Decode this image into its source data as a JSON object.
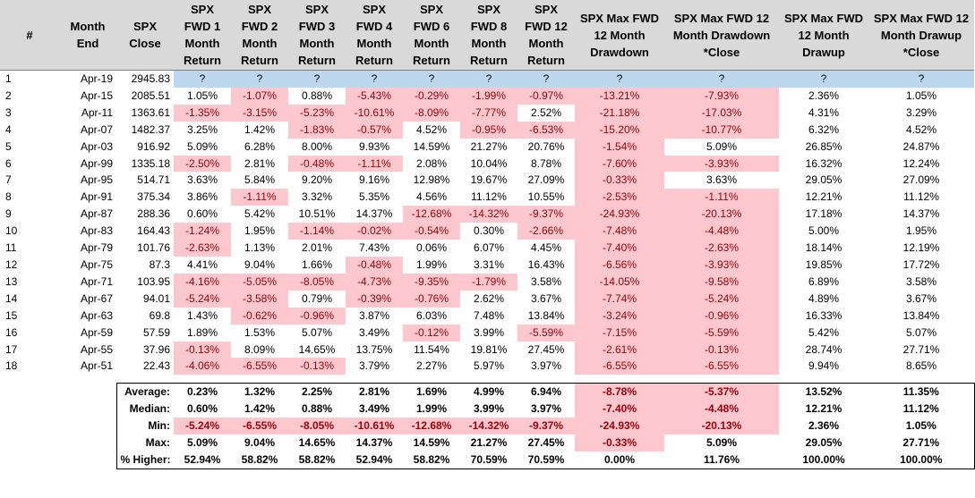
{
  "headers": [
    "#",
    "Month End",
    "SPX Close",
    "SPX FWD 1 Month Return",
    "SPX FWD 2 Month Return",
    "SPX FWD 3 Month Return",
    "SPX FWD 4 Month Return",
    "SPX FWD 6 Month Return",
    "SPX FWD 8 Month Return",
    "SPX FWD 12 Month Return",
    "SPX Max FWD 12 Month Drawdown",
    "SPX Max FWD 12 Month Drawdown *Close",
    "SPX Max FWD 12 Month Drawup",
    "SPX Max FWD 12 Month Drawup *Close"
  ],
  "rows": [
    [
      "1",
      "Apr-19",
      "2945.83",
      "?",
      "?",
      "?",
      "?",
      "?",
      "?",
      "?",
      "?",
      "?",
      "?",
      "?"
    ],
    [
      "2",
      "Apr-15",
      "2085.51",
      "1.05%",
      "-1.07%",
      "0.88%",
      "-5.43%",
      "-0.29%",
      "-1.99%",
      "-0.97%",
      "-13.21%",
      "-7.93%",
      "2.36%",
      "1.05%"
    ],
    [
      "3",
      "Apr-11",
      "1363.61",
      "-1.35%",
      "-3.15%",
      "-5.23%",
      "-10.61%",
      "-8.09%",
      "-7.77%",
      "2.52%",
      "-21.18%",
      "-17.03%",
      "4.31%",
      "3.29%"
    ],
    [
      "4",
      "Apr-07",
      "1482.37",
      "3.25%",
      "1.42%",
      "-1.83%",
      "-0.57%",
      "4.52%",
      "-0.95%",
      "-6.53%",
      "-15.20%",
      "-10.77%",
      "6.32%",
      "4.52%"
    ],
    [
      "5",
      "Apr-03",
      "916.92",
      "5.09%",
      "6.28%",
      "8.00%",
      "9.93%",
      "14.59%",
      "21.27%",
      "20.76%",
      "-1.54%",
      "5.09%",
      "26.85%",
      "24.87%"
    ],
    [
      "6",
      "Apr-99",
      "1335.18",
      "-2.50%",
      "2.81%",
      "-0.48%",
      "-1.11%",
      "2.08%",
      "10.04%",
      "8.78%",
      "-7.60%",
      "-3.93%",
      "16.32%",
      "12.24%"
    ],
    [
      "7",
      "Apr-95",
      "514.71",
      "3.63%",
      "5.84%",
      "9.20%",
      "9.16%",
      "12.98%",
      "19.67%",
      "27.09%",
      "-0.33%",
      "3.63%",
      "29.05%",
      "27.09%"
    ],
    [
      "8",
      "Apr-91",
      "375.34",
      "3.86%",
      "-1.11%",
      "3.32%",
      "5.35%",
      "4.56%",
      "11.12%",
      "10.55%",
      "-2.53%",
      "-1.11%",
      "12.21%",
      "11.12%"
    ],
    [
      "9",
      "Apr-87",
      "288.36",
      "0.60%",
      "5.42%",
      "10.51%",
      "14.37%",
      "-12.68%",
      "-14.32%",
      "-9.37%",
      "-24.93%",
      "-20.13%",
      "17.18%",
      "14.37%"
    ],
    [
      "10",
      "Apr-83",
      "164.43",
      "-1.24%",
      "1.95%",
      "-1.14%",
      "-0.02%",
      "-0.54%",
      "0.30%",
      "-2.66%",
      "-7.48%",
      "-4.48%",
      "5.00%",
      "1.95%"
    ],
    [
      "11",
      "Apr-79",
      "101.76",
      "-2.63%",
      "1.13%",
      "2.01%",
      "7.43%",
      "0.06%",
      "6.07%",
      "4.45%",
      "-7.40%",
      "-2.63%",
      "18.14%",
      "12.19%"
    ],
    [
      "12",
      "Apr-75",
      "87.3",
      "4.41%",
      "9.04%",
      "1.66%",
      "-0.48%",
      "1.99%",
      "3.31%",
      "16.43%",
      "-6.56%",
      "-3.93%",
      "19.85%",
      "17.72%"
    ],
    [
      "13",
      "Apr-71",
      "103.95",
      "-4.16%",
      "-5.05%",
      "-8.05%",
      "-4.73%",
      "-9.35%",
      "-1.79%",
      "3.58%",
      "-14.05%",
      "-9.58%",
      "6.89%",
      "3.58%"
    ],
    [
      "14",
      "Apr-67",
      "94.01",
      "-5.24%",
      "-3.58%",
      "0.79%",
      "-0.39%",
      "-0.76%",
      "2.62%",
      "3.67%",
      "-7.74%",
      "-5.24%",
      "4.89%",
      "3.67%"
    ],
    [
      "15",
      "Apr-63",
      "69.8",
      "1.43%",
      "-0.62%",
      "-0.96%",
      "3.87%",
      "6.03%",
      "7.48%",
      "13.84%",
      "-3.24%",
      "-0.96%",
      "16.33%",
      "13.84%"
    ],
    [
      "16",
      "Apr-59",
      "57.59",
      "1.89%",
      "1.53%",
      "5.07%",
      "3.49%",
      "-0.12%",
      "3.99%",
      "-5.59%",
      "-7.15%",
      "-5.59%",
      "5.42%",
      "5.07%"
    ],
    [
      "17",
      "Apr-55",
      "37.96",
      "-0.13%",
      "8.09%",
      "14.65%",
      "13.75%",
      "11.54%",
      "19.81%",
      "27.45%",
      "-2.61%",
      "-0.13%",
      "28.74%",
      "27.71%"
    ],
    [
      "18",
      "Apr-51",
      "22.43",
      "-4.06%",
      "-6.55%",
      "-0.13%",
      "3.79%",
      "2.27%",
      "5.97%",
      "3.97%",
      "-6.55%",
      "-6.55%",
      "9.94%",
      "8.65%"
    ]
  ],
  "summary": [
    {
      "label": "Average:",
      "values": [
        "0.23%",
        "1.32%",
        "2.25%",
        "2.81%",
        "1.69%",
        "4.99%",
        "6.94%",
        "-8.78%",
        "-5.37%",
        "13.52%",
        "11.35%"
      ]
    },
    {
      "label": "Median:",
      "values": [
        "0.60%",
        "1.42%",
        "0.88%",
        "3.49%",
        "1.99%",
        "3.99%",
        "3.97%",
        "-7.40%",
        "-4.48%",
        "12.21%",
        "11.12%"
      ]
    },
    {
      "label": "Min:",
      "values": [
        "-5.24%",
        "-6.55%",
        "-8.05%",
        "-10.61%",
        "-12.68%",
        "-14.32%",
        "-9.37%",
        "-24.93%",
        "-20.13%",
        "2.36%",
        "1.05%"
      ]
    },
    {
      "label": "Max:",
      "values": [
        "5.09%",
        "9.04%",
        "14.65%",
        "14.37%",
        "14.59%",
        "21.27%",
        "27.45%",
        "-0.33%",
        "5.09%",
        "29.05%",
        "27.71%"
      ]
    },
    {
      "label": "% Higher:",
      "values": [
        "52.94%",
        "58.82%",
        "58.82%",
        "52.94%",
        "58.82%",
        "70.59%",
        "70.59%",
        "0.00%",
        "11.76%",
        "100.00%",
        "100.00%"
      ]
    }
  ],
  "colors": {
    "header_bg": "#d9d9d9",
    "question_row_bg": "#bdd7ee",
    "negative_fill": "#ffc7ce",
    "negative_text": "#9c0006"
  }
}
